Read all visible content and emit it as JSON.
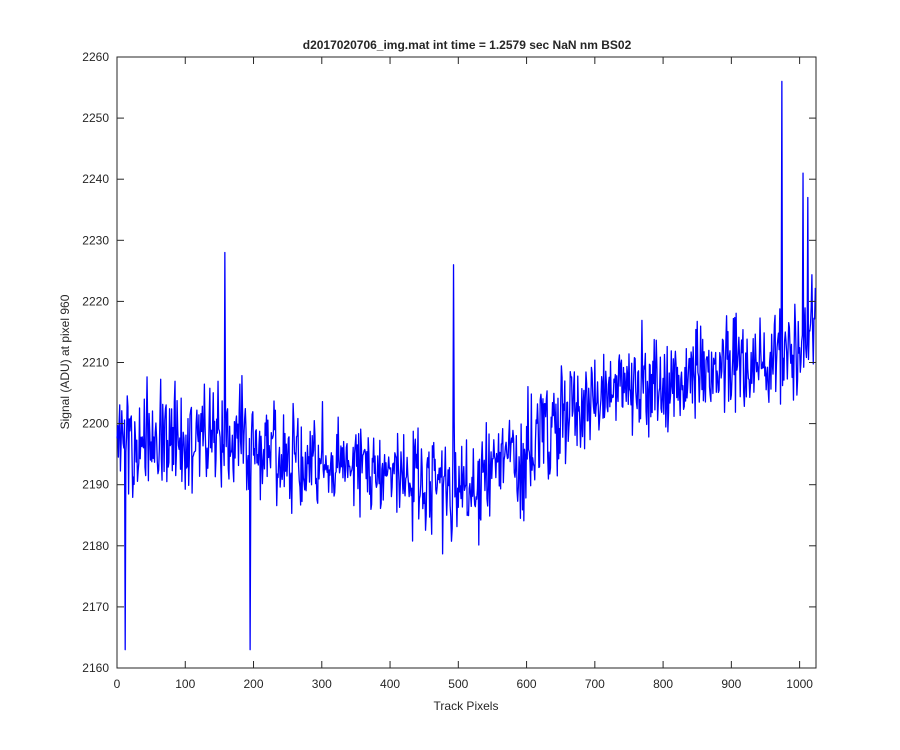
{
  "chart_data": {
    "type": "line",
    "title": "d2017020706_img.mat int time = 1.2579 sec  NaN nm BS02",
    "xlabel": "Track Pixels",
    "ylabel": "Signal (ADU) at pixel 960",
    "xlim": [
      0,
      1024
    ],
    "ylim": [
      2160,
      2260
    ],
    "xticks": [
      0,
      100,
      200,
      300,
      400,
      500,
      600,
      700,
      800,
      900,
      1000
    ],
    "yticks": [
      2160,
      2170,
      2180,
      2190,
      2200,
      2210,
      2220,
      2230,
      2240,
      2250,
      2260
    ],
    "grid": false,
    "series": [
      {
        "name": "signal",
        "color": "#0000ff",
        "n_points": 1024,
        "x_step": 1,
        "trend": [
          [
            0,
            2197
          ],
          [
            150,
            2197
          ],
          [
            300,
            2194
          ],
          [
            420,
            2191
          ],
          [
            520,
            2190
          ],
          [
            600,
            2196
          ],
          [
            700,
            2205
          ],
          [
            850,
            2208
          ],
          [
            1000,
            2212
          ],
          [
            1023,
            2214
          ]
        ],
        "noise_amplitude": 7,
        "marked_points": [
          {
            "x": 12,
            "y": 2163
          },
          {
            "x": 158,
            "y": 2228
          },
          {
            "x": 195,
            "y": 2163
          },
          {
            "x": 493,
            "y": 2226
          },
          {
            "x": 974,
            "y": 2256
          },
          {
            "x": 1005,
            "y": 2241
          },
          {
            "x": 1012,
            "y": 2237
          }
        ]
      }
    ]
  }
}
